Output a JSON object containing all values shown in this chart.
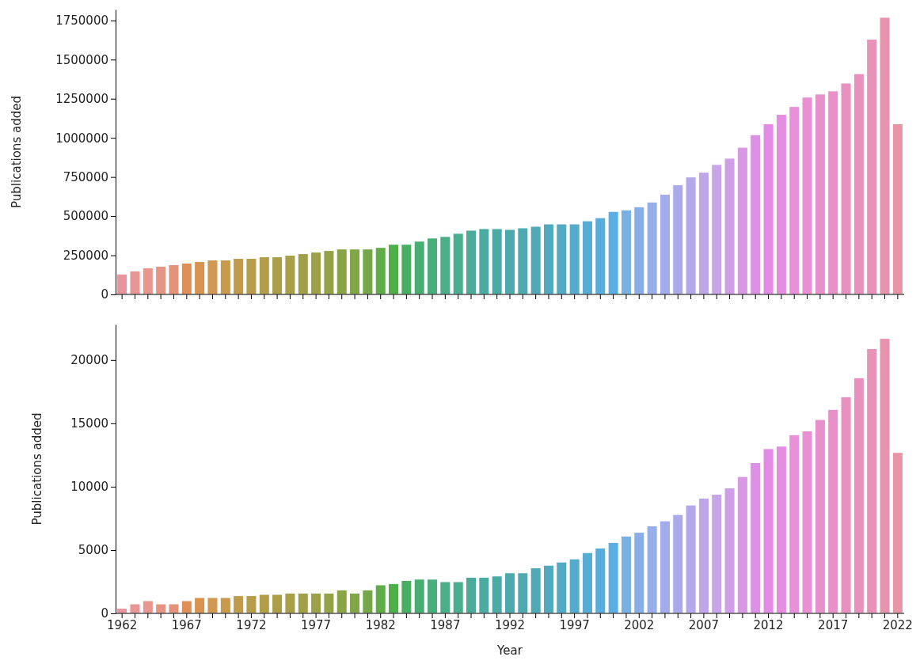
{
  "chart_data": [
    {
      "type": "bar",
      "ylabel": "Publications added",
      "tick_labels": "y",
      "ylim": [
        0,
        1820000
      ],
      "yticks": [
        0,
        250000,
        500000,
        750000,
        1000000,
        1250000,
        1500000,
        1750000
      ],
      "categories": [
        "1962",
        null,
        null,
        null,
        null,
        "1967",
        null,
        null,
        null,
        null,
        "1972",
        null,
        null,
        null,
        null,
        "1977",
        null,
        null,
        null,
        null,
        "1982",
        null,
        null,
        null,
        null,
        "1987",
        null,
        null,
        null,
        null,
        "1992",
        null,
        null,
        null,
        null,
        "1997",
        null,
        null,
        null,
        null,
        "2002",
        null,
        null,
        null,
        null,
        "2007",
        null,
        null,
        null,
        null,
        "2012",
        null,
        null,
        null,
        null,
        "2017",
        null,
        null,
        null,
        null,
        "2022"
      ],
      "values": [
        130000,
        150000,
        170000,
        180000,
        190000,
        200000,
        210000,
        220000,
        220000,
        230000,
        230000,
        240000,
        240000,
        250000,
        260000,
        270000,
        280000,
        290000,
        290000,
        290000,
        300000,
        320000,
        320000,
        340000,
        360000,
        370000,
        390000,
        410000,
        420000,
        420000,
        415000,
        425000,
        435000,
        450000,
        450000,
        450000,
        470000,
        490000,
        530000,
        540000,
        560000,
        590000,
        640000,
        700000,
        750000,
        780000,
        830000,
        870000,
        940000,
        1020000,
        1090000,
        1150000,
        1200000,
        1260000,
        1280000,
        1300000,
        1350000,
        1410000,
        1630000,
        1770000,
        1090000
      ],
      "colors": [
        "#e8939e",
        "#e89596",
        "#e8968e",
        "#e69484",
        "#e4927a",
        "#e08f58",
        "#d8944e",
        "#d09850",
        "#c89a4e",
        "#c09b4d",
        "#b89c4c",
        "#b29d4a",
        "#ac9e49",
        "#a69f48",
        "#a0a048",
        "#9aa148",
        "#94a248",
        "#8aa448",
        "#80a648",
        "#72a848",
        "#60ac48",
        "#4eae48",
        "#48ae62",
        "#48ae72",
        "#48ae7c",
        "#4aae88",
        "#4aad90",
        "#4aac98",
        "#4aaba0",
        "#4caaa6",
        "#4daaac",
        "#4eaab0",
        "#50aab6",
        "#51aabc",
        "#52aac4",
        "#54abcc",
        "#56acd4",
        "#58addc",
        "#5aaee2",
        "#78b0e4",
        "#8aafe8",
        "#98aeea",
        "#a2acea",
        "#aaaaea",
        "#b4a8ea",
        "#bea6e8",
        "#c8a4e8",
        "#d09ee6",
        "#d898e4",
        "#dd91e4",
        "#e28ae4",
        "#e58de0",
        "#e890d8",
        "#e890d2",
        "#e890cc",
        "#e890c8",
        "#e891c0",
        "#e891bc",
        "#e892b8",
        "#e893ae",
        "#e894a6"
      ]
    },
    {
      "type": "bar",
      "xlabel": "Year",
      "ylabel": "Publications added",
      "ylim": [
        0,
        22800
      ],
      "yticks": [
        0,
        5000,
        10000,
        15000,
        20000
      ],
      "categories": [
        "1962",
        null,
        null,
        null,
        null,
        "1967",
        null,
        null,
        null,
        null,
        "1972",
        null,
        null,
        null,
        null,
        "1977",
        null,
        null,
        null,
        null,
        "1982",
        null,
        null,
        null,
        null,
        "1987",
        null,
        null,
        null,
        null,
        "1992",
        null,
        null,
        null,
        null,
        "1997",
        null,
        null,
        null,
        null,
        "2002",
        null,
        null,
        null,
        null,
        "2007",
        null,
        null,
        null,
        null,
        "2012",
        null,
        null,
        null,
        null,
        "2017",
        null,
        null,
        null,
        null,
        "2022"
      ],
      "values": [
        400,
        750,
        1000,
        750,
        750,
        1000,
        1250,
        1250,
        1250,
        1400,
        1400,
        1500,
        1500,
        1600,
        1600,
        1600,
        1600,
        1850,
        1600,
        1850,
        2250,
        2350,
        2600,
        2700,
        2700,
        2500,
        2500,
        2850,
        2850,
        2950,
        3200,
        3200,
        3600,
        3800,
        4050,
        4300,
        4800,
        5150,
        5600,
        6100,
        6400,
        6900,
        7300,
        7800,
        8550,
        9100,
        9400,
        9900,
        10800,
        11900,
        13000,
        13200,
        14100,
        14400,
        15300,
        16100,
        17100,
        18600,
        20900,
        21700,
        12700
      ],
      "colors": [
        "#e8939e",
        "#e89596",
        "#e8968e",
        "#e69484",
        "#e4927a",
        "#e08f58",
        "#d8944e",
        "#d09850",
        "#c89a4e",
        "#c09b4d",
        "#b89c4c",
        "#b29d4a",
        "#ac9e49",
        "#a69f48",
        "#a0a048",
        "#9aa148",
        "#94a248",
        "#8aa448",
        "#80a648",
        "#72a848",
        "#60ac48",
        "#4eae48",
        "#48ae62",
        "#48ae72",
        "#48ae7c",
        "#4aae88",
        "#4aad90",
        "#4aac98",
        "#4aaba0",
        "#4caaa6",
        "#4daaac",
        "#4eaab0",
        "#50aab6",
        "#51aabc",
        "#52aac4",
        "#54abcc",
        "#56acd4",
        "#58addc",
        "#5aaee2",
        "#78b0e4",
        "#8aafe8",
        "#98aeea",
        "#a2acea",
        "#aaaaea",
        "#b4a8ea",
        "#bea6e8",
        "#c8a4e8",
        "#d09ee6",
        "#d898e4",
        "#dd91e4",
        "#e28ae4",
        "#e58de0",
        "#e890d8",
        "#e890d2",
        "#e890cc",
        "#e890c8",
        "#e891c0",
        "#e891bc",
        "#e892b8",
        "#e893ae",
        "#e894a6"
      ]
    }
  ]
}
